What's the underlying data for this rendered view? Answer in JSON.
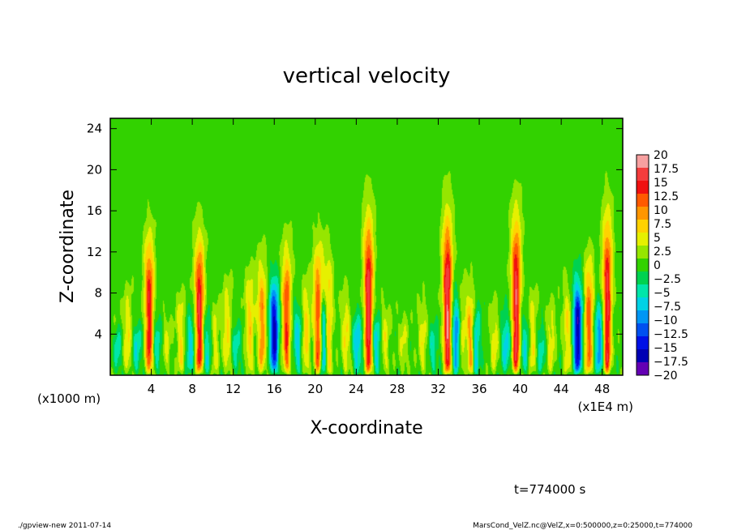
{
  "chart_data": {
    "type": "heatmap",
    "title": "vertical velocity",
    "xlabel": "X-coordinate",
    "ylabel": "Z-coordinate",
    "x_unit": "(x1E4 m)",
    "y_unit": "(x1000 m)",
    "xlim": [
      0,
      50
    ],
    "ylim": [
      0,
      25
    ],
    "x_ticks": [
      "4",
      "8",
      "12",
      "16",
      "20",
      "24",
      "28",
      "32",
      "36",
      "40",
      "44",
      "48"
    ],
    "y_ticks": [
      "4",
      "8",
      "12",
      "16",
      "20",
      "24"
    ],
    "colorbar": {
      "range": [
        -20,
        20
      ],
      "labels": [
        "20",
        "17.5",
        "15",
        "12.5",
        "10",
        "7.5",
        "5",
        "2.5",
        "0",
        "-2.5",
        "-5",
        "-7.5",
        "-10",
        "-12.5",
        "-15",
        "-17.5",
        "-20"
      ],
      "colors": [
        "#f7a0a0",
        "#f43c3c",
        "#f01010",
        "#ff5a00",
        "#ff9600",
        "#ffd200",
        "#e6f000",
        "#96e600",
        "#32d200",
        "#00d250",
        "#00e6aa",
        "#00d2e6",
        "#0096f5",
        "#0050f0",
        "#0010e6",
        "#0000b4",
        "#6400b4"
      ]
    },
    "updrafts": [
      {
        "x": 0.4,
        "amp": 4,
        "top": 6
      },
      {
        "x": 1.7,
        "amp": 6,
        "top": 8
      },
      {
        "x": 3.8,
        "amp": 15,
        "top": 13
      },
      {
        "x": 5.5,
        "amp": 4,
        "top": 6
      },
      {
        "x": 6.9,
        "amp": 6,
        "top": 8
      },
      {
        "x": 8.7,
        "amp": 16,
        "top": 13
      },
      {
        "x": 10.2,
        "amp": 5,
        "top": 7
      },
      {
        "x": 11.4,
        "amp": 6,
        "top": 9
      },
      {
        "x": 13.6,
        "amp": 7,
        "top": 10
      },
      {
        "x": 14.8,
        "amp": 10,
        "top": 11
      },
      {
        "x": 17.2,
        "amp": 13,
        "top": 12
      },
      {
        "x": 19.1,
        "amp": 7,
        "top": 9
      },
      {
        "x": 20.3,
        "amp": 14,
        "top": 12
      },
      {
        "x": 21.2,
        "amp": 13,
        "top": 11
      },
      {
        "x": 23.0,
        "amp": 6,
        "top": 8
      },
      {
        "x": 25.2,
        "amp": 17,
        "top": 15
      },
      {
        "x": 26.8,
        "amp": 5,
        "top": 7
      },
      {
        "x": 28.6,
        "amp": 4,
        "top": 6
      },
      {
        "x": 30.5,
        "amp": 5,
        "top": 7
      },
      {
        "x": 32.9,
        "amp": 18,
        "top": 15
      },
      {
        "x": 34.2,
        "amp": 6,
        "top": 9
      },
      {
        "x": 35.2,
        "amp": 12,
        "top": 8
      },
      {
        "x": 37.5,
        "amp": 5,
        "top": 7
      },
      {
        "x": 39.6,
        "amp": 17,
        "top": 15
      },
      {
        "x": 41.2,
        "amp": 6,
        "top": 8
      },
      {
        "x": 43.0,
        "amp": 5,
        "top": 7
      },
      {
        "x": 44.6,
        "amp": 6,
        "top": 9
      },
      {
        "x": 46.7,
        "amp": 12,
        "top": 11
      },
      {
        "x": 48.5,
        "amp": 16,
        "top": 15
      }
    ],
    "downdrafts": [
      {
        "x": 0.6,
        "amp": -8,
        "top": 5
      },
      {
        "x": 2.6,
        "amp": -6,
        "top": 5
      },
      {
        "x": 4.6,
        "amp": -5,
        "top": 6
      },
      {
        "x": 7.8,
        "amp": -7,
        "top": 6
      },
      {
        "x": 9.5,
        "amp": -6,
        "top": 6
      },
      {
        "x": 12.3,
        "amp": -5,
        "top": 5
      },
      {
        "x": 16.0,
        "amp": -16,
        "top": 9
      },
      {
        "x": 18.3,
        "amp": -7,
        "top": 7
      },
      {
        "x": 20.9,
        "amp": -14,
        "top": 9
      },
      {
        "x": 24.1,
        "amp": -8,
        "top": 6
      },
      {
        "x": 26.0,
        "amp": -7,
        "top": 6
      },
      {
        "x": 31.5,
        "amp": -5,
        "top": 5
      },
      {
        "x": 33.8,
        "amp": -12,
        "top": 8
      },
      {
        "x": 35.6,
        "amp": -10,
        "top": 7
      },
      {
        "x": 38.6,
        "amp": -7,
        "top": 6
      },
      {
        "x": 40.5,
        "amp": -6,
        "top": 6
      },
      {
        "x": 42.0,
        "amp": -5,
        "top": 5
      },
      {
        "x": 45.6,
        "amp": -17,
        "top": 9
      },
      {
        "x": 47.7,
        "amp": -10,
        "top": 7
      }
    ]
  },
  "annotations": {
    "time": "t=774000 s",
    "footer_left": "./gpview-new   2011-07-14",
    "footer_right": "MarsCond_VelZ.nc@VelZ,x=0:500000,z=0:25000,t=774000"
  }
}
